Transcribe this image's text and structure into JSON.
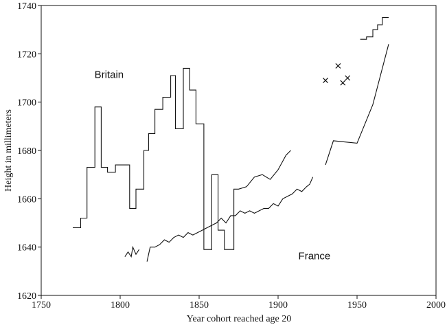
{
  "chart_data": {
    "type": "line",
    "xlabel": "Year cohort reached age 20",
    "ylabel": "Height in millimeters",
    "xlim": [
      1750,
      2000
    ],
    "ylim": [
      1620,
      1740
    ],
    "xticks": [
      1750,
      1800,
      1850,
      1900,
      1950,
      2000
    ],
    "yticks": [
      1620,
      1640,
      1660,
      1680,
      1700,
      1720,
      1740
    ],
    "series": [
      {
        "name": "Britain",
        "color": "#111111",
        "x": [
          1770,
          1775,
          1775,
          1779,
          1779,
          1784,
          1784,
          1788,
          1788,
          1792,
          1792,
          1797,
          1797,
          1806,
          1806,
          1810,
          1810,
          1815,
          1815,
          1818,
          1818,
          1822,
          1822,
          1827,
          1827,
          1832,
          1832,
          1835,
          1835,
          1840,
          1840,
          1844,
          1844,
          1848,
          1848,
          1853,
          1853,
          1858,
          1858,
          1862,
          1862,
          1866,
          1866,
          1872,
          1872,
          1875,
          1880,
          1885,
          1890,
          1895,
          1900,
          1905,
          1908,
          null,
          1952,
          1956,
          1956,
          1960,
          1960,
          1963,
          1963,
          1966,
          1966,
          1970
        ],
        "values": [
          1648,
          1648,
          1652,
          1652,
          1673,
          1673,
          1698,
          1698,
          1673,
          1673,
          1671,
          1671,
          1674,
          1674,
          1656,
          1656,
          1664,
          1664,
          1680,
          1680,
          1687,
          1687,
          1697,
          1697,
          1702,
          1702,
          1711,
          1711,
          1689,
          1689,
          1714,
          1714,
          1705,
          1705,
          1691,
          1691,
          1639,
          1639,
          1670,
          1670,
          1647,
          1647,
          1639,
          1639,
          1664,
          1664,
          1665,
          1669,
          1670,
          1668,
          1672,
          1678,
          1680,
          null,
          1726,
          1726,
          1727,
          1727,
          1730,
          1730,
          1732,
          1732,
          1735,
          1735
        ]
      },
      {
        "name": "France",
        "color": "#111111",
        "x": [
          1803,
          1805,
          1807,
          1808,
          1810,
          1812,
          null,
          1817,
          1819,
          1822,
          1825,
          1828,
          1831,
          1834,
          1837,
          1840,
          1843,
          1846,
          1849,
          1852,
          1855,
          1858,
          1861,
          1864,
          1867,
          1870,
          1873,
          1876,
          1879,
          1882,
          1885,
          1888,
          1891,
          1894,
          1897,
          1900,
          1903,
          1906,
          1909,
          1912,
          1915,
          1918,
          1920,
          1922,
          null,
          1930,
          1935,
          1950,
          1960,
          1970
        ],
        "values": [
          1636,
          1638,
          1636,
          1640,
          1637,
          1639,
          null,
          1634,
          1640,
          1640,
          1641,
          1643,
          1642,
          1644,
          1645,
          1644,
          1646,
          1645,
          1646,
          1647,
          1648,
          1649,
          1650,
          1652,
          1650,
          1653,
          1653,
          1655,
          1654,
          1655,
          1654,
          1655,
          1656,
          1656,
          1658,
          1657,
          1660,
          1661,
          1662,
          1664,
          1663,
          1665,
          1666,
          1669,
          null,
          1674,
          1684,
          1683,
          1699,
          1724
        ]
      }
    ],
    "markers": {
      "x": [
        1930,
        1938,
        1941,
        1944
      ],
      "values": [
        1709,
        1715,
        1708,
        1710
      ]
    }
  }
}
